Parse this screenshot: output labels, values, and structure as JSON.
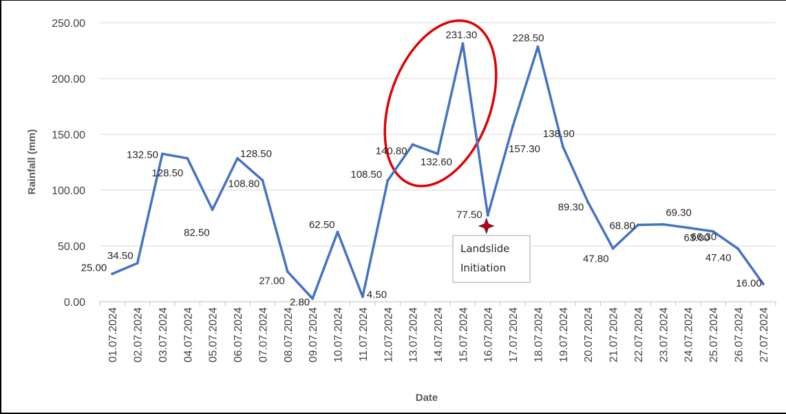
{
  "chart_data": {
    "type": "line",
    "xlabel": "Date",
    "ylabel": "Rainfall (mm)",
    "ylim": [
      0,
      250
    ],
    "yticks": [
      "0.00",
      "50.00",
      "100.00",
      "150.00",
      "200.00",
      "250.00"
    ],
    "grid": true,
    "line_color": "#4472C4",
    "categories": [
      "01.07.2024",
      "02.07.2024",
      "03.07.2024",
      "04.07.2024",
      "05.07.2024",
      "06.07.2024",
      "07.07.2024",
      "08.07.2024",
      "09.07.2024",
      "10.07.2024",
      "11.07.2024",
      "12.07.2024",
      "13.07.2024",
      "14.07.2024",
      "15.07.2024",
      "16.07.2024",
      "17.07.2024",
      "18.07.2024",
      "19.07.2024",
      "20.07.2024",
      "21.07.2024",
      "22.07.2024",
      "23.07.2024",
      "24.07.2024",
      "25.07.2024",
      "26.07.2024",
      "27.07.2024"
    ],
    "values": [
      25.0,
      34.5,
      132.5,
      128.5,
      82.5,
      128.5,
      108.8,
      27.0,
      2.8,
      62.5,
      4.5,
      108.5,
      140.8,
      132.6,
      231.3,
      77.5,
      157.3,
      228.5,
      138.9,
      89.3,
      47.8,
      68.8,
      69.3,
      66.3,
      63.0,
      47.4,
      16.0
    ],
    "data_labels": [
      "25.00",
      "34.50",
      "132.50",
      "128.50",
      "82.50",
      "128.50",
      "108.80",
      "27.00",
      "2.80",
      "62.50",
      "4.50",
      "108.50",
      "140.80",
      "132.60",
      "231.30",
      "77.50",
      "157.30",
      "228.50",
      "138.90",
      "89.30",
      "47.80",
      "68.80",
      "69.30",
      "66.30",
      "63.00",
      "47.40",
      "16.00"
    ],
    "annotation": {
      "text_line1": "Landslide",
      "text_line2": "Initiation",
      "date": "16.07.2024",
      "marker_color": "#C00000",
      "highlight_color": "#E00000"
    }
  }
}
